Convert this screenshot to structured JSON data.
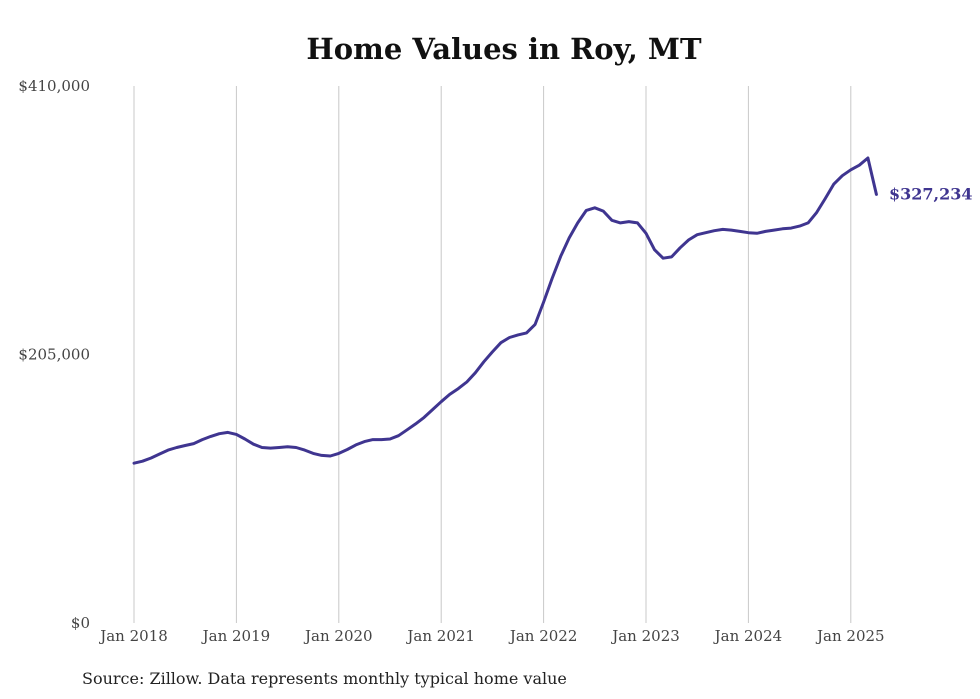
{
  "chart_data": {
    "type": "line",
    "title": "Home Values in Roy, MT",
    "source": "Source: Zillow. Data represents monthly typical home value",
    "x_tick_labels": [
      "Jan 2018",
      "Jan 2019",
      "Jan 2020",
      "Jan 2021",
      "Jan 2022",
      "Jan 2023",
      "Jan 2024",
      "Jan 2025"
    ],
    "y_tick_labels": [
      "$410,000",
      "$205,000",
      "$0"
    ],
    "y_tick_values": [
      410000,
      205000,
      0
    ],
    "ylim": [
      0,
      410000
    ],
    "x_range": [
      "2018-01",
      "2025-04"
    ],
    "grid": "vertical",
    "line_color": "#3f3590",
    "end_label": "$327,234",
    "series": [
      {
        "x": [
          "2018-01",
          "2018-02",
          "2018-03",
          "2018-04",
          "2018-05",
          "2018-06",
          "2018-07",
          "2018-08",
          "2018-09",
          "2018-10",
          "2018-11",
          "2018-12",
          "2019-01",
          "2019-02",
          "2019-03",
          "2019-04",
          "2019-05",
          "2019-06",
          "2019-07",
          "2019-08",
          "2019-09",
          "2019-10",
          "2019-11",
          "2019-12",
          "2020-01",
          "2020-02",
          "2020-03",
          "2020-04",
          "2020-05",
          "2020-06",
          "2020-07",
          "2020-08",
          "2020-09",
          "2020-10",
          "2020-11",
          "2020-12",
          "2021-01",
          "2021-02",
          "2021-03",
          "2021-04",
          "2021-05",
          "2021-06",
          "2021-07",
          "2021-08",
          "2021-09",
          "2021-10",
          "2021-11",
          "2021-12",
          "2022-01",
          "2022-02",
          "2022-03",
          "2022-04",
          "2022-05",
          "2022-06",
          "2022-07",
          "2022-08",
          "2022-09",
          "2022-10",
          "2022-11",
          "2022-12",
          "2023-01",
          "2023-02",
          "2023-03",
          "2023-04",
          "2023-05",
          "2023-06",
          "2023-07",
          "2023-08",
          "2023-09",
          "2023-10",
          "2023-11",
          "2023-12",
          "2024-01",
          "2024-02",
          "2024-03",
          "2024-04",
          "2024-05",
          "2024-06",
          "2024-07",
          "2024-08",
          "2024-09",
          "2024-10",
          "2024-11",
          "2024-12",
          "2025-01",
          "2025-02",
          "2025-03",
          "2025-04"
        ],
        "values": [
          122000,
          123500,
          126000,
          129000,
          132000,
          134000,
          135500,
          137000,
          140000,
          142500,
          144500,
          145500,
          144000,
          140500,
          136500,
          134000,
          133500,
          134000,
          134500,
          134000,
          132000,
          129500,
          128000,
          127500,
          129500,
          132500,
          136000,
          138500,
          140000,
          140000,
          140500,
          143000,
          147500,
          152000,
          157000,
          163000,
          169000,
          174500,
          179000,
          184000,
          191000,
          199500,
          207000,
          214000,
          218000,
          220000,
          221500,
          228000,
          245000,
          263000,
          280000,
          294000,
          305500,
          315000,
          317000,
          314500,
          307500,
          305500,
          306500,
          305500,
          297500,
          285000,
          278500,
          279500,
          286500,
          292500,
          296500,
          298000,
          299500,
          300500,
          300000,
          299000,
          298000,
          297500,
          299000,
          300000,
          301000,
          301500,
          303000,
          305500,
          313500,
          324000,
          335000,
          341500,
          346000,
          349500,
          355000,
          327234
        ]
      }
    ]
  }
}
